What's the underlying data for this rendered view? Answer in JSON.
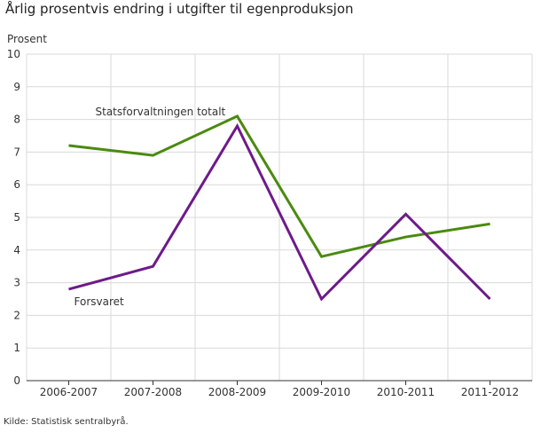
{
  "title": "Årlig prosentvis endring i utgifter til egenproduksjon",
  "source": "Kilde: Statistisk sentralbyrå.",
  "chart_data": {
    "type": "line",
    "title": "Årlig prosentvis endring i utgifter til egenproduksjon",
    "ylabel": "Prosent",
    "xlabel": "",
    "categories": [
      "2006-2007",
      "2007-2008",
      "2008-2009",
      "2009-2010",
      "2010-2011",
      "2011-2012"
    ],
    "ylim": [
      0,
      10
    ],
    "yticks": [
      0,
      1,
      2,
      3,
      4,
      5,
      6,
      7,
      8,
      9,
      10
    ],
    "grid": true,
    "series": [
      {
        "name": "Statsforvaltningen totalt",
        "color": "#4a8a10",
        "values": [
          7.2,
          6.9,
          8.1,
          3.8,
          4.4,
          4.8
        ]
      },
      {
        "name": "Forsvaret",
        "color": "#6e1a8a",
        "values": [
          2.8,
          3.5,
          7.8,
          2.5,
          5.1,
          2.5
        ]
      }
    ]
  }
}
